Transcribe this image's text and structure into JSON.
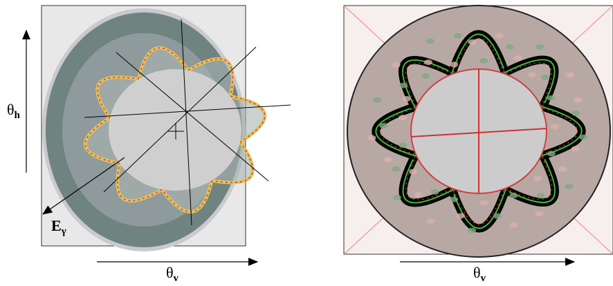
{
  "left_panel": {
    "y_axis_label": {
      "symbol": "θ",
      "subscript": "h"
    },
    "vector_label": {
      "symbol": "E",
      "subscript": "γ"
    },
    "x_axis_label": {
      "symbol": "θ",
      "subscript": "v"
    }
  },
  "right_panel": {
    "x_axis_label": {
      "symbol": "θ",
      "subscript": "v"
    }
  }
}
